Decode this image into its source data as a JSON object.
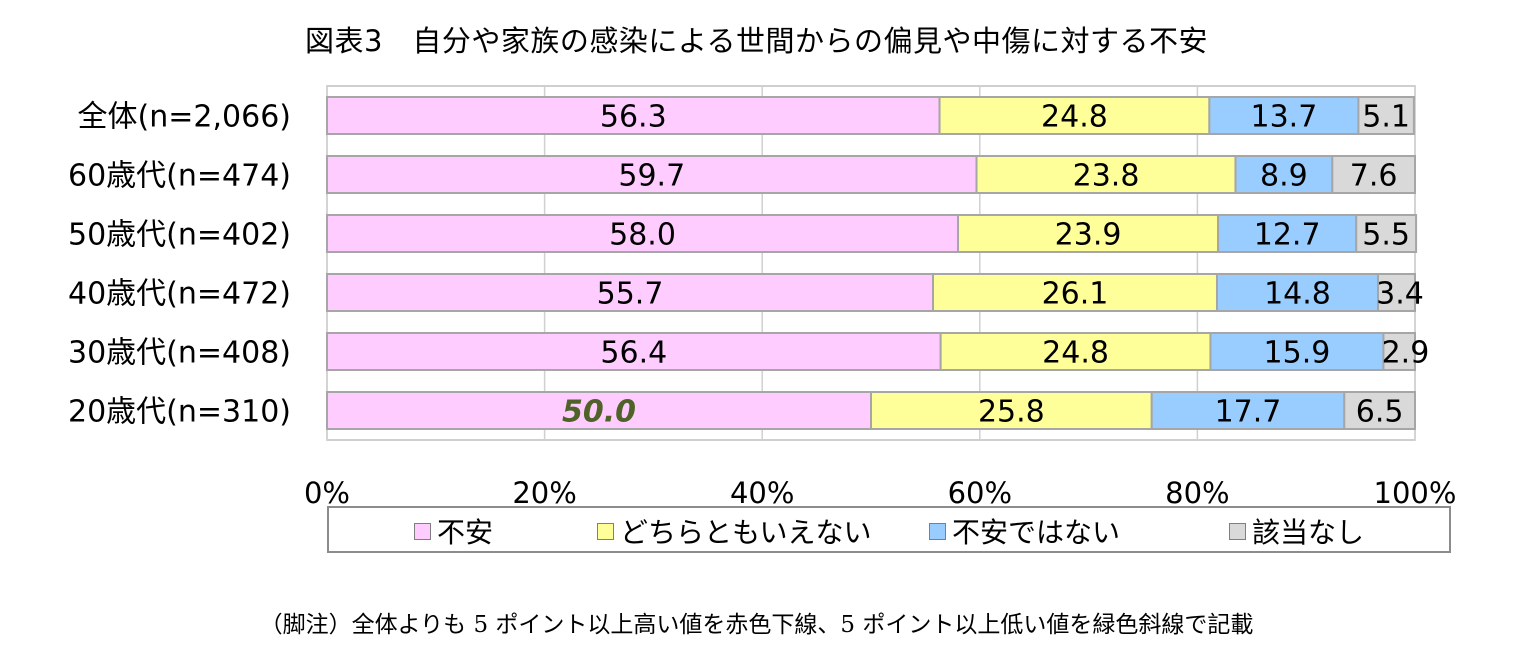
{
  "title": "図表3　自分や家族の感染による世間からの偏見や中傷に対する不安",
  "footnote": "（脚注）全体よりも 5 ポイント以上高い値を赤色下線、5 ポイント以上低い値を緑色斜線で記載",
  "chart_data": {
    "type": "bar",
    "orientation": "horizontal",
    "stacked": true,
    "percent": true,
    "categories": [
      "全体(n=2,066)",
      "60歳代(n=474)",
      "50歳代(n=402)",
      "40歳代(n=472)",
      "30歳代(n=408)",
      "20歳代(n=310)"
    ],
    "series": [
      {
        "name": "不安",
        "color": "#ffccff",
        "values": [
          56.3,
          59.7,
          58.0,
          55.7,
          56.4,
          50.0
        ]
      },
      {
        "name": "どちらともいえない",
        "color": "#ffff99",
        "values": [
          24.8,
          23.8,
          23.9,
          26.1,
          24.8,
          25.8
        ]
      },
      {
        "name": "不安ではない",
        "color": "#99ccff",
        "values": [
          13.7,
          8.9,
          12.7,
          14.8,
          15.9,
          17.7
        ]
      },
      {
        "name": "該当なし",
        "color": "#d9d9d9",
        "values": [
          5.1,
          7.6,
          5.5,
          3.4,
          2.9,
          6.5
        ]
      }
    ],
    "data_labels": [
      [
        "56.3",
        "24.8",
        "13.7",
        "5.1"
      ],
      [
        "59.7",
        "23.8",
        "8.9",
        "7.6"
      ],
      [
        "58.0",
        "23.9",
        "12.7",
        "5.5"
      ],
      [
        "55.7",
        "26.1",
        "14.8",
        "3.4"
      ],
      [
        "56.4",
        "24.8",
        "15.9",
        "2.9"
      ],
      [
        "50.0",
        "25.8",
        "17.7",
        "6.5"
      ]
    ],
    "highlight_low": [
      {
        "category_index": 5,
        "series_index": 0,
        "color": "#4f6228"
      }
    ],
    "xlim": [
      0,
      100
    ],
    "x_ticks": [
      "0%",
      "20%",
      "40%",
      "60%",
      "80%",
      "100%"
    ],
    "grid": true,
    "legend_position": "bottom"
  }
}
